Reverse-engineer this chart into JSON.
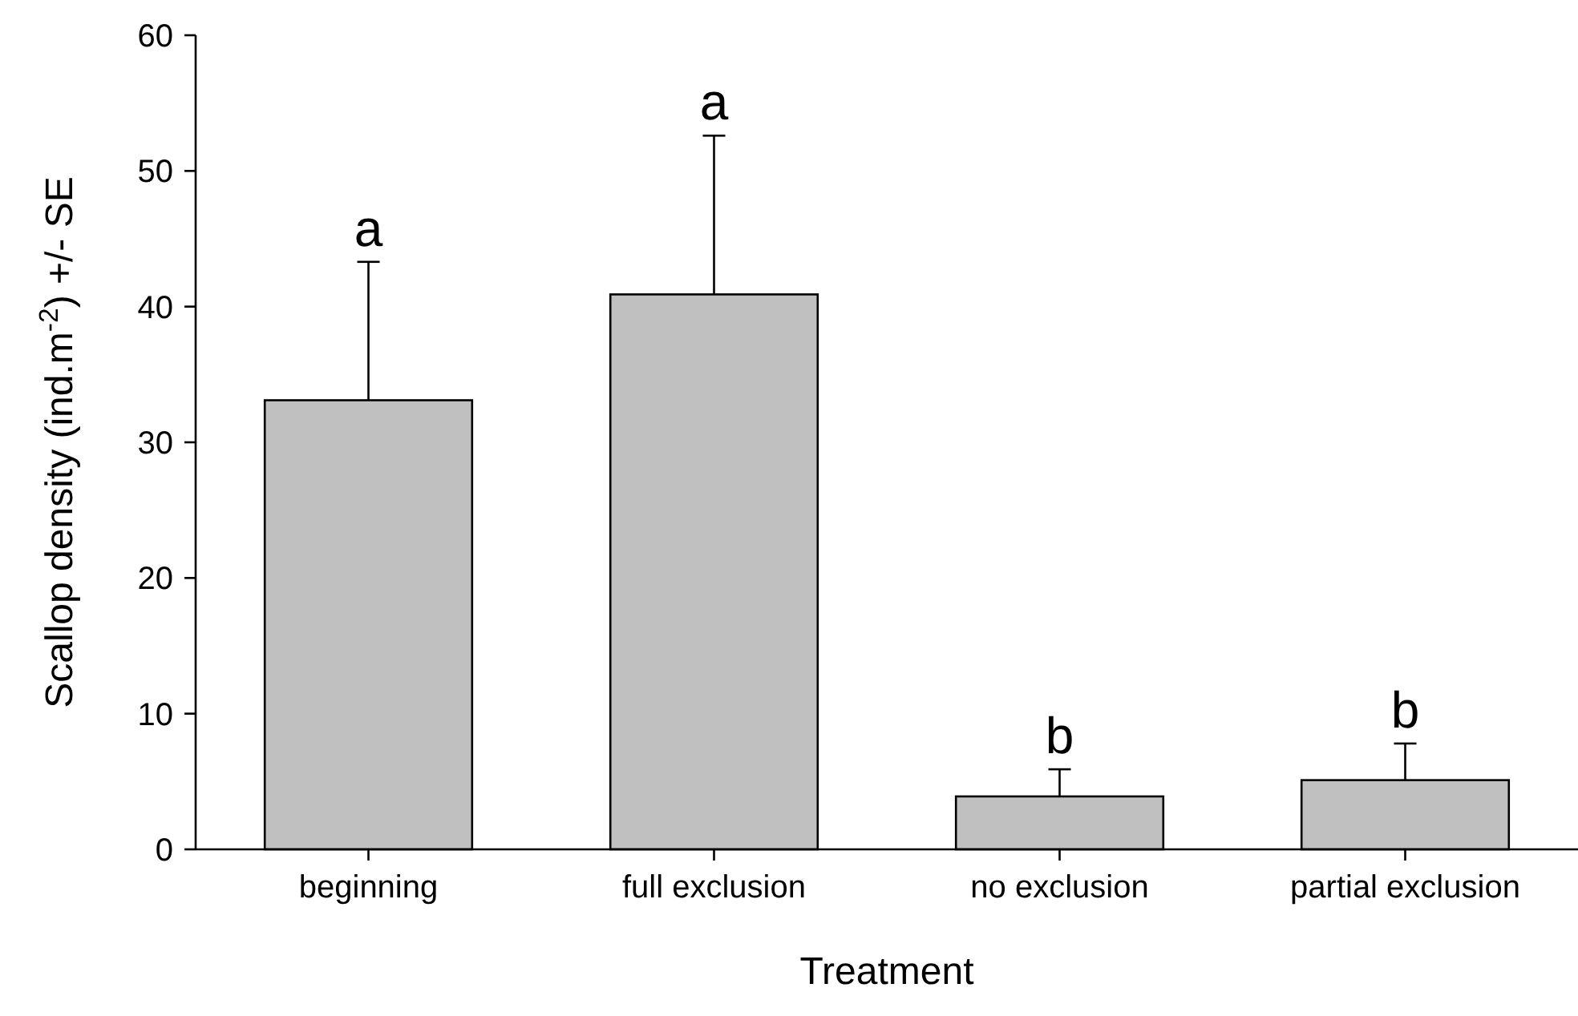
{
  "chart_data": {
    "type": "bar",
    "xlabel": "Treatment",
    "ylabel": "Scallop density (ind.m$^{-2}$) +/- SE",
    "categories": [
      "beginning",
      "full exclusion",
      "no exclusion",
      "partial exclusion"
    ],
    "values": [
      33.1,
      40.9,
      3.9,
      5.1
    ],
    "color": "#c0c0c0",
    "errors": [
      [
        33.1,
        43.3
      ],
      [
        40.9,
        52.6
      ],
      [
        3.9,
        5.9
      ],
      [
        5.1,
        7.8
      ]
    ],
    "ylim": [
      0,
      60
    ],
    "yticks": [
      0,
      10,
      20,
      30,
      40,
      50,
      60
    ],
    "grid": false,
    "annotations": [
      {
        "text": "a",
        "x": "beginning",
        "y": 43.3
      },
      {
        "text": "a",
        "x": "full exclusion",
        "y": 52.6
      },
      {
        "text": "b",
        "x": "no exclusion",
        "y": 5.9
      },
      {
        "text": "b",
        "x": "partial exclusion",
        "y": 7.8
      }
    ]
  }
}
